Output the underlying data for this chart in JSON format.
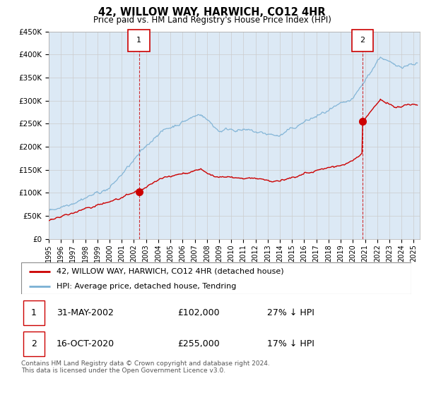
{
  "title": "42, WILLOW WAY, HARWICH, CO12 4HR",
  "subtitle": "Price paid vs. HM Land Registry's House Price Index (HPI)",
  "ylabel_ticks": [
    "£0",
    "£50K",
    "£100K",
    "£150K",
    "£200K",
    "£250K",
    "£300K",
    "£350K",
    "£400K",
    "£450K"
  ],
  "ylim": [
    0,
    450000
  ],
  "xlim_start": 1995.0,
  "xlim_end": 2025.5,
  "marker1_x": 2002.42,
  "marker1_y": 102000,
  "marker2_x": 2020.79,
  "marker2_y": 255000,
  "legend_line1": "42, WILLOW WAY, HARWICH, CO12 4HR (detached house)",
  "legend_line2": "HPI: Average price, detached house, Tendring",
  "table_row1_date": "31-MAY-2002",
  "table_row1_price": "£102,000",
  "table_row1_hpi": "27% ↓ HPI",
  "table_row2_date": "16-OCT-2020",
  "table_row2_price": "£255,000",
  "table_row2_hpi": "17% ↓ HPI",
  "footer": "Contains HM Land Registry data © Crown copyright and database right 2024.\nThis data is licensed under the Open Government Licence v3.0.",
  "red_color": "#cc0000",
  "blue_color": "#7ab0d4",
  "bg_color": "#dce9f5",
  "background_color": "#ffffff",
  "grid_color": "#cccccc"
}
